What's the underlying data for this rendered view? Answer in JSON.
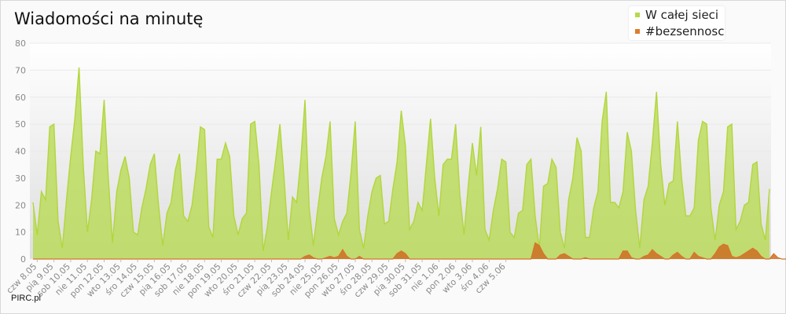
{
  "title": "Wiadomości na minutę",
  "credit": "PIRC.pl",
  "chart_data": {
    "type": "area",
    "title": "Wiadomości na minutę",
    "xlabel": "",
    "ylabel": "",
    "ylim": [
      0,
      80
    ],
    "yticks": [
      0,
      10,
      20,
      30,
      40,
      50,
      60,
      70,
      80
    ],
    "grid": true,
    "legend": "top-right",
    "x_tick_labels": [
      "czw 8.05",
      "pią 9.05",
      "sob 10.05",
      "nie 11.05",
      "pon 12.05",
      "wto 13.05",
      "śro 14.05",
      "czw 15.05",
      "pią 16.05",
      "sob 17.05",
      "nie 18.05",
      "pon 19.05",
      "wto 20.05",
      "śro 21.05",
      "czw 22.05",
      "pią 23.05",
      "sob 24.05",
      "nie 25.05",
      "pon 26.05",
      "wto 27.05",
      "śro 28.05",
      "czw 29.05",
      "pią 30.05",
      "sob 31.05",
      "nie 1.06",
      "pon 2.06",
      "wto 3.06",
      "śro 4.06",
      "czw 5.06"
    ],
    "x_tick_index": [
      1,
      5,
      9,
      13,
      17,
      21,
      25,
      29,
      33,
      37,
      41,
      45,
      49,
      53,
      57,
      61,
      65,
      69,
      73,
      77,
      81,
      85,
      89,
      93,
      97,
      101,
      105,
      109,
      113
    ],
    "series": [
      {
        "name": "W całej sieci",
        "color": "#b6d94a",
        "values": [
          21,
          9,
          25,
          22,
          49,
          50,
          14,
          4,
          22,
          38,
          52,
          71,
          35,
          10,
          22,
          40,
          39,
          59,
          30,
          6,
          25,
          33,
          38,
          30,
          10,
          9,
          19,
          26,
          35,
          39,
          20,
          5,
          17,
          21,
          33,
          39,
          16,
          14,
          20,
          33,
          49,
          48,
          12,
          8,
          37,
          37,
          43,
          38,
          16,
          9,
          15,
          17,
          50,
          51,
          35,
          3,
          12,
          25,
          37,
          50,
          30,
          7,
          23,
          21,
          37,
          59,
          19,
          5,
          18,
          30,
          38,
          51,
          15,
          9,
          14,
          17,
          32,
          51,
          11,
          4,
          16,
          25,
          30,
          31,
          13,
          14,
          26,
          36,
          55,
          42,
          11,
          14,
          21,
          18,
          35,
          52,
          30,
          16,
          35,
          37,
          37,
          50,
          24,
          9,
          27,
          43,
          31,
          49,
          11,
          7,
          18,
          26,
          37,
          36,
          10,
          8,
          17,
          18,
          35,
          37,
          16,
          4,
          27,
          28,
          37,
          34,
          10,
          4,
          22,
          30,
          45,
          40,
          8,
          8,
          19,
          25,
          51,
          62,
          21,
          21,
          19,
          25,
          47,
          40,
          18,
          4,
          22,
          27,
          43,
          62,
          35,
          20,
          28,
          29,
          51,
          30,
          16,
          16,
          19,
          44,
          51,
          50,
          19,
          7,
          20,
          25,
          49,
          50,
          11,
          14,
          20,
          21,
          35,
          36,
          13,
          7,
          26
        ]
      },
      {
        "name": "#bezsennosc",
        "color": "#e07c2c",
        "values": [
          0,
          0,
          0,
          0,
          0,
          0,
          0,
          0,
          0,
          0,
          0,
          0,
          0,
          0,
          0,
          0,
          0,
          0,
          0,
          0,
          0,
          0,
          0,
          0,
          0,
          0,
          0,
          0,
          0,
          0,
          0,
          0,
          0,
          0,
          0,
          0,
          0,
          0,
          0,
          0,
          0,
          0,
          0,
          0,
          0,
          0,
          0,
          0,
          0,
          0,
          0,
          0,
          0,
          0,
          0,
          0,
          0,
          0,
          0,
          0,
          0,
          0,
          0,
          0,
          0,
          1,
          1.5,
          0.5,
          0,
          0,
          0.5,
          1,
          0.5,
          1,
          3.5,
          1,
          0,
          0,
          1,
          0,
          0,
          0,
          0,
          0,
          0,
          0,
          0,
          2,
          3,
          2,
          0,
          0,
          0,
          0,
          0,
          0,
          0,
          0,
          0,
          0,
          0,
          0,
          0,
          0,
          0,
          0,
          0,
          0,
          0,
          0,
          0,
          0,
          0,
          0,
          0,
          0,
          0,
          0,
          0,
          0,
          6,
          5,
          2,
          0,
          0,
          0,
          1.5,
          2,
          1,
          0,
          0,
          0,
          0.5,
          0,
          0,
          0,
          0,
          0,
          0,
          0,
          0,
          3,
          3,
          0.5,
          0,
          0,
          1,
          1.5,
          3.5,
          2,
          1,
          0,
          0,
          1.5,
          2.5,
          1,
          0,
          0,
          2.5,
          1,
          0.5,
          0,
          0,
          2,
          4.5,
          5.5,
          5,
          1,
          0.5,
          1,
          2,
          3,
          4,
          3,
          1,
          0,
          0,
          2,
          0.5,
          0,
          0,
          0,
          0,
          0
        ]
      }
    ]
  }
}
